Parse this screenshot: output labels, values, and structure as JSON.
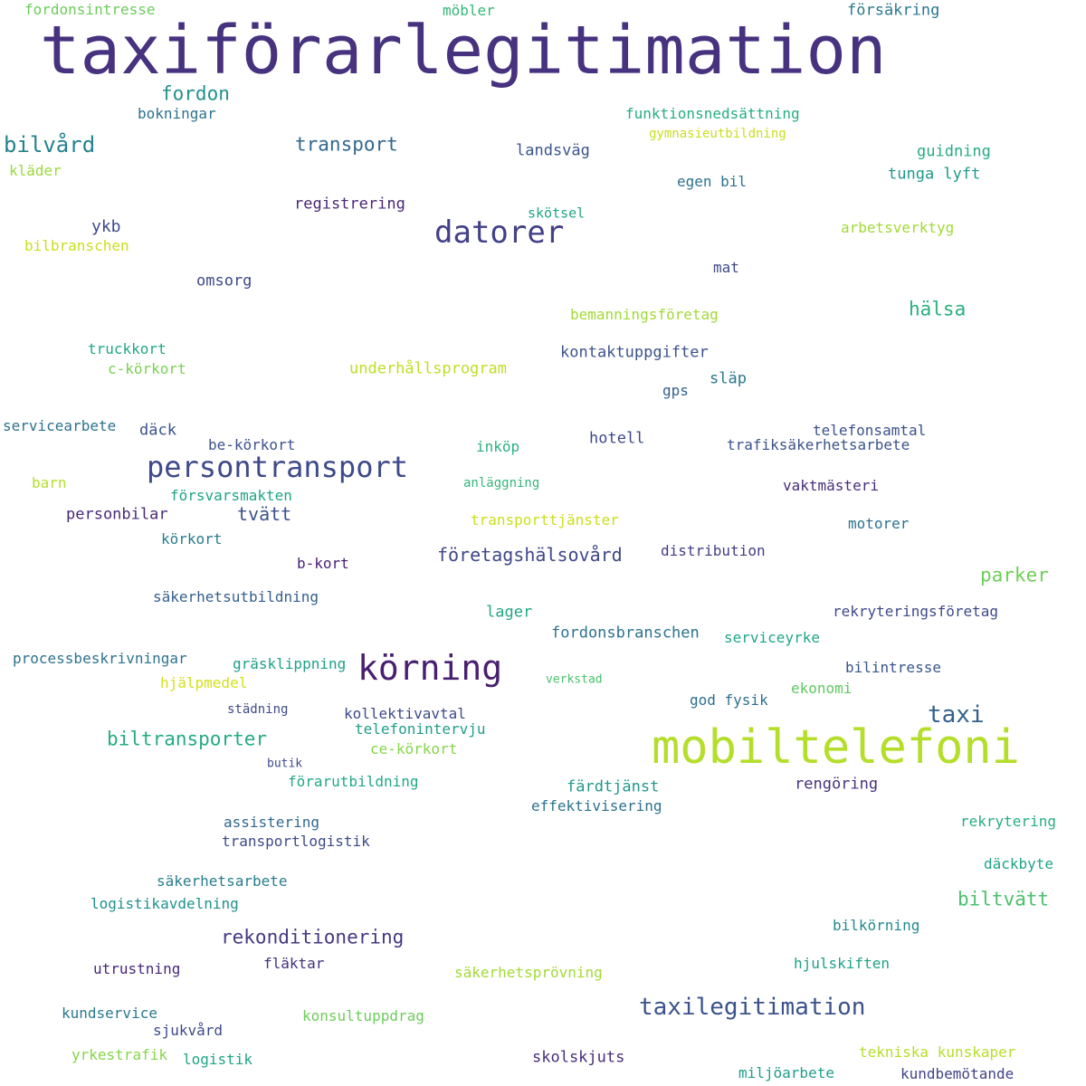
{
  "words": [
    {
      "text": "taxiförarlegitimation",
      "color": "#46327e"
    },
    {
      "text": "mobiltelefoni",
      "color": "#b5de2b"
    },
    {
      "text": "körning",
      "color": "#481f70"
    },
    {
      "text": "datorer",
      "color": "#424086"
    },
    {
      "text": "persontransport",
      "color": "#3e4a89"
    },
    {
      "text": "taxilegitimation",
      "color": "#3b528b"
    },
    {
      "text": "taxi",
      "color": "#34608d"
    },
    {
      "text": "fordon",
      "color": "#21918c"
    },
    {
      "text": "bilvård",
      "color": "#26828e"
    },
    {
      "text": "transport",
      "color": "#31688e"
    },
    {
      "text": "hälsa",
      "color": "#2ab07f"
    },
    {
      "text": "biltransporter",
      "color": "#25ab82"
    },
    {
      "text": "rekonditionering",
      "color": "#443983"
    },
    {
      "text": "företagshälsovård",
      "color": "#3f4788"
    },
    {
      "text": "parker",
      "color": "#6ece58"
    },
    {
      "text": "biltvätt",
      "color": "#4ac16d"
    },
    {
      "text": "tvätt",
      "color": "#3b528b"
    },
    {
      "text": "ykb",
      "color": "#3e4a89"
    },
    {
      "text": "fordonsintresse",
      "color": "#6ccd5a"
    },
    {
      "text": "möbler",
      "color": "#35b779"
    },
    {
      "text": "försäkring",
      "color": "#2a788e"
    },
    {
      "text": "bokningar",
      "color": "#2c728e"
    },
    {
      "text": "funktionsnedsättning",
      "color": "#27ad81"
    },
    {
      "text": "gymnasieutbildning",
      "color": "#c8e020"
    },
    {
      "text": "landsväg",
      "color": "#39558c"
    },
    {
      "text": "guidning",
      "color": "#25ab82"
    },
    {
      "text": "kläder",
      "color": "#9bd93c"
    },
    {
      "text": "egen bil",
      "color": "#2c728e"
    },
    {
      "text": "tunga lyft",
      "color": "#1f998a"
    },
    {
      "text": "registrering",
      "color": "#482878"
    },
    {
      "text": "skötsel",
      "color": "#21a685"
    },
    {
      "text": "bilbranschen",
      "color": "#c8e020"
    },
    {
      "text": "arbetsverktyg",
      "color": "#a2da37"
    },
    {
      "text": "mat",
      "color": "#3e4a89"
    },
    {
      "text": "omsorg",
      "color": "#3e4a89"
    },
    {
      "text": "bemanningsföretag",
      "color": "#a2da37"
    },
    {
      "text": "truckkort",
      "color": "#22a884"
    },
    {
      "text": "kontaktuppgifter",
      "color": "#3b528b"
    },
    {
      "text": "c-körkort",
      "color": "#7ad151"
    },
    {
      "text": "underhållsprogram",
      "color": "#bddf26"
    },
    {
      "text": "släp",
      "color": "#2a788e"
    },
    {
      "text": "gps",
      "color": "#355f8d"
    },
    {
      "text": "servicearbete",
      "color": "#2c728e"
    },
    {
      "text": "däck",
      "color": "#3b528b"
    },
    {
      "text": "telefonsamtal",
      "color": "#3b528b"
    },
    {
      "text": "hotell",
      "color": "#3e4a89"
    },
    {
      "text": "be-körkort",
      "color": "#3b528b"
    },
    {
      "text": "inköp",
      "color": "#2ab07f"
    },
    {
      "text": "trafiksäkerhetsarbete",
      "color": "#3b528b"
    },
    {
      "text": "barn",
      "color": "#b5de2b"
    },
    {
      "text": "anläggning",
      "color": "#35b779"
    },
    {
      "text": "försvarsmakten",
      "color": "#20a486"
    },
    {
      "text": "vaktmästeri",
      "color": "#472d7b"
    },
    {
      "text": "personbilar",
      "color": "#482878"
    },
    {
      "text": "transporttjänster",
      "color": "#c8e020"
    },
    {
      "text": "motorer",
      "color": "#2c728e"
    },
    {
      "text": "körkort",
      "color": "#287c8e"
    },
    {
      "text": "distribution",
      "color": "#433e85"
    },
    {
      "text": "b-kort",
      "color": "#481f70"
    },
    {
      "text": "säkerhetsutbildning",
      "color": "#355f8d"
    },
    {
      "text": "lager",
      "color": "#22a884"
    },
    {
      "text": "rekryteringsföretag",
      "color": "#3e4a89"
    },
    {
      "text": "fordonsbranschen",
      "color": "#2c728e"
    },
    {
      "text": "processbeskrivningar",
      "color": "#2c728e"
    },
    {
      "text": "serviceyrke",
      "color": "#21a685"
    },
    {
      "text": "gräsklippning",
      "color": "#1fa188"
    },
    {
      "text": "bilintresse",
      "color": "#39558c"
    },
    {
      "text": "hjälpmedel",
      "color": "#d2e21b"
    },
    {
      "text": "verkstad",
      "color": "#4ac16d"
    },
    {
      "text": "ekonomi",
      "color": "#5ec962"
    },
    {
      "text": "städning",
      "color": "#3e4a89"
    },
    {
      "text": "kollektivavtal",
      "color": "#3e4a89"
    },
    {
      "text": "god fysik",
      "color": "#2d708e"
    },
    {
      "text": "telefonintervju",
      "color": "#1f9e89"
    },
    {
      "text": "ce-körkort",
      "color": "#86d549"
    },
    {
      "text": "butik",
      "color": "#3e4a89"
    },
    {
      "text": "förarutbildning",
      "color": "#22a884"
    },
    {
      "text": "färdtjänst",
      "color": "#1f988b"
    },
    {
      "text": "rengöring",
      "color": "#46327e"
    },
    {
      "text": "effektivisering",
      "color": "#2c728e"
    },
    {
      "text": "assistering",
      "color": "#31688e"
    },
    {
      "text": "rekrytering",
      "color": "#27ad81"
    },
    {
      "text": "transportlogistik",
      "color": "#3e4a89"
    },
    {
      "text": "däckbyte",
      "color": "#20a486"
    },
    {
      "text": "säkerhetsarbete",
      "color": "#287c8e"
    },
    {
      "text": "logistikavdelning",
      "color": "#21918c"
    },
    {
      "text": "bilkörning",
      "color": "#23898e"
    },
    {
      "text": "fläktar",
      "color": "#46327e"
    },
    {
      "text": "hjulskiften",
      "color": "#1fa188"
    },
    {
      "text": "utrustning",
      "color": "#482878"
    },
    {
      "text": "säkerhetsprövning",
      "color": "#a2da37"
    },
    {
      "text": "kundservice",
      "color": "#2a788e"
    },
    {
      "text": "konsultuppdrag",
      "color": "#6ccd5a"
    },
    {
      "text": "sjukvård",
      "color": "#3e4a89"
    },
    {
      "text": "yrkestrafik",
      "color": "#86d549"
    },
    {
      "text": "logistik",
      "color": "#21a685"
    },
    {
      "text": "skolskjuts",
      "color": "#472d7b"
    },
    {
      "text": "tekniska kunskaper",
      "color": "#b5de2b"
    },
    {
      "text": "miljöarbete",
      "color": "#1f9e89"
    },
    {
      "text": "kundbemötande",
      "color": "#414487"
    }
  ]
}
